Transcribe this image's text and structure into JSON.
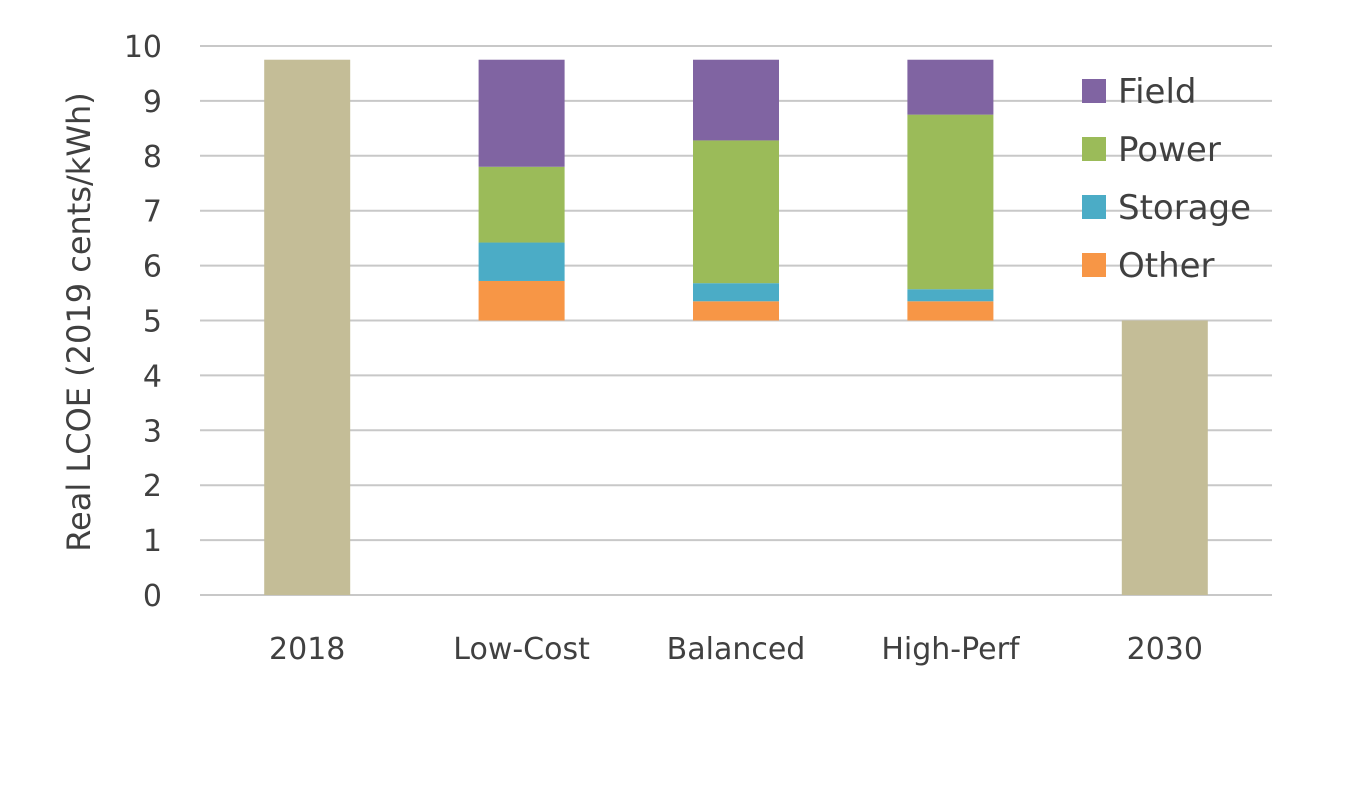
{
  "chart_data": {
    "type": "bar",
    "subtype": "waterfall-stacked",
    "title": "",
    "xlabel": "",
    "ylabel": "Real LCOE (2019 cents/kWh)",
    "ylim": [
      0,
      10
    ],
    "yticks": [
      "0",
      "1",
      "2",
      "3",
      "4",
      "5",
      "6",
      "7",
      "8",
      "9",
      "10"
    ],
    "grid": true,
    "legend_position": "top-right",
    "categories": [
      "2018",
      "Low-Cost",
      "Balanced",
      "High-Perf",
      "2030"
    ],
    "totals": [
      {
        "category": "2018",
        "value": 9.75,
        "color": "#c4bd97"
      },
      {
        "category": "2030",
        "value": 5.0,
        "color": "#c4bd97"
      }
    ],
    "stack_base": 5.0,
    "series": [
      {
        "name": "Other",
        "color": "#f79646",
        "values": [
          0,
          0.72,
          0.35,
          0.35,
          0
        ]
      },
      {
        "name": "Storage",
        "color": "#4bacc6",
        "values": [
          0,
          0.7,
          0.33,
          0.22,
          0
        ]
      },
      {
        "name": "Power",
        "color": "#9bbb59",
        "values": [
          0,
          1.38,
          2.6,
          3.18,
          0
        ]
      },
      {
        "name": "Field",
        "color": "#8064a2",
        "values": [
          0,
          1.95,
          1.47,
          1.0,
          0
        ]
      }
    ],
    "legend_order": [
      "Field",
      "Power",
      "Storage",
      "Other"
    ]
  }
}
